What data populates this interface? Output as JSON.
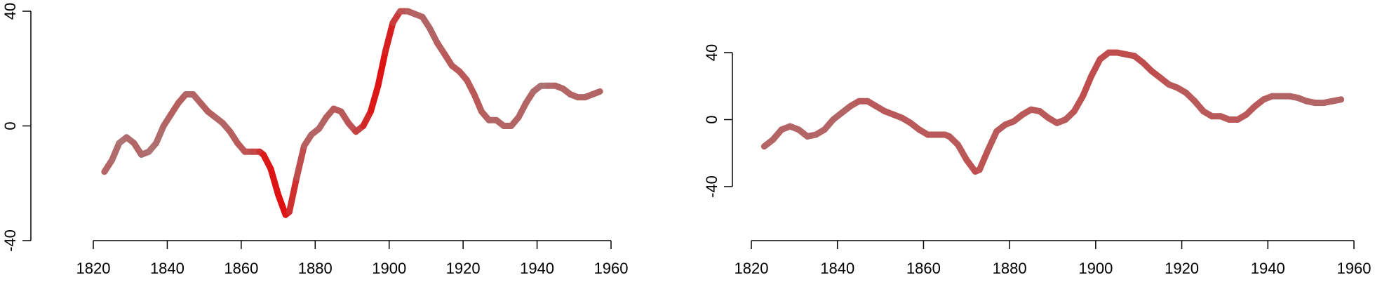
{
  "chart_data": [
    {
      "type": "line",
      "title": "",
      "xlabel": "",
      "ylabel": "",
      "xlim": [
        1820,
        1960
      ],
      "ylim": [
        -40,
        40
      ],
      "x_ticks": [
        "1820",
        "1840",
        "1860",
        "1880",
        "1900",
        "1920",
        "1940",
        "1960"
      ],
      "y_ticks": [
        "-40",
        "0",
        "40"
      ],
      "grid": false,
      "legend": "none",
      "colors": {
        "line_gray": "#a08a8a",
        "line_red": "#e01010"
      },
      "series": [
        {
          "x": [
            1823,
            1825,
            1827,
            1829,
            1831,
            1833,
            1835,
            1837,
            1839,
            1841,
            1843,
            1845,
            1847,
            1849,
            1851,
            1853,
            1855,
            1857,
            1859,
            1861,
            1863,
            1865,
            1866,
            1868,
            1870,
            1872,
            1873,
            1875,
            1877,
            1879,
            1881,
            1883,
            1885,
            1887,
            1889,
            1891,
            1893,
            1895,
            1897,
            1899,
            1901,
            1903,
            1905,
            1907,
            1909,
            1911,
            1913,
            1915,
            1917,
            1919,
            1921,
            1923,
            1925,
            1927,
            1929,
            1931,
            1933,
            1935,
            1937,
            1939,
            1941,
            1943,
            1945,
            1947,
            1949,
            1951,
            1953,
            1955,
            1957
          ],
          "y": [
            -16,
            -12,
            -6,
            -4,
            -6,
            -10,
            -9,
            -6,
            0,
            4,
            8,
            11,
            11,
            8,
            5,
            3,
            1,
            -2,
            -6,
            -9,
            -9,
            -9,
            -10,
            -15,
            -24,
            -31,
            -30,
            -18,
            -7,
            -3,
            -1,
            3,
            6,
            5,
            1,
            -2,
            0,
            5,
            14,
            26,
            36,
            40,
            40,
            39,
            38,
            34,
            29,
            25,
            21,
            19,
            16,
            11,
            5,
            2,
            2,
            0,
            0,
            3,
            8,
            12,
            14,
            14,
            14,
            13,
            11,
            10,
            10,
            11,
            12
          ],
          "emphasis": [
            0.3,
            0.3,
            0.2,
            0.2,
            0.3,
            0.3,
            0.2,
            0.2,
            0.3,
            0.3,
            0.4,
            0.3,
            0.3,
            0.3,
            0.4,
            0.3,
            0.3,
            0.3,
            0.4,
            0.4,
            0.5,
            0.6,
            0.9,
            0.95,
            1,
            1,
            0.9,
            0.6,
            0.4,
            0.3,
            0.3,
            0.3,
            0.4,
            0.4,
            0.4,
            0.5,
            0.7,
            0.9,
            1,
            0.95,
            0.8,
            0.5,
            0.4,
            0.3,
            0.3,
            0.3,
            0.3,
            0.4,
            0.4,
            0.4,
            0.4,
            0.4,
            0.4,
            0.3,
            0.3,
            0.3,
            0.3,
            0.3,
            0.3,
            0.3,
            0.2,
            0.2,
            0.3,
            0.3,
            0.3,
            0.3,
            0.3,
            0.3,
            0.3
          ]
        }
      ]
    },
    {
      "type": "line",
      "title": "",
      "xlabel": "",
      "ylabel": "",
      "xlim": [
        1820,
        1960
      ],
      "ylim": [
        -40,
        40
      ],
      "x_ticks": [
        "1820",
        "1840",
        "1860",
        "1880",
        "1900",
        "1920",
        "1940",
        "1960"
      ],
      "y_ticks": [
        "-40",
        "0",
        "40"
      ],
      "grid": false,
      "legend": "none",
      "colors": {
        "line_gray": "#a08a8a",
        "line_red": "#e01010"
      },
      "series": [
        {
          "x": [
            1823,
            1825,
            1827,
            1829,
            1831,
            1833,
            1835,
            1837,
            1839,
            1841,
            1843,
            1845,
            1847,
            1849,
            1851,
            1853,
            1855,
            1857,
            1859,
            1861,
            1863,
            1865,
            1866,
            1868,
            1870,
            1872,
            1873,
            1875,
            1877,
            1879,
            1881,
            1883,
            1885,
            1887,
            1889,
            1891,
            1893,
            1895,
            1897,
            1899,
            1901,
            1903,
            1905,
            1907,
            1909,
            1911,
            1913,
            1915,
            1917,
            1919,
            1921,
            1923,
            1925,
            1927,
            1929,
            1931,
            1933,
            1935,
            1937,
            1939,
            1941,
            1943,
            1945,
            1947,
            1949,
            1951,
            1953,
            1955,
            1957
          ],
          "y": [
            -16,
            -12,
            -6,
            -4,
            -6,
            -10,
            -9,
            -6,
            0,
            4,
            8,
            11,
            11,
            8,
            5,
            3,
            1,
            -2,
            -6,
            -9,
            -9,
            -9,
            -10,
            -15,
            -24,
            -31,
            -30,
            -18,
            -7,
            -3,
            -1,
            3,
            6,
            5,
            1,
            -2,
            0,
            5,
            14,
            26,
            36,
            40,
            40,
            39,
            38,
            34,
            29,
            25,
            21,
            19,
            16,
            11,
            5,
            2,
            2,
            0,
            0,
            3,
            8,
            12,
            14,
            14,
            14,
            13,
            11,
            10,
            10,
            11,
            12
          ],
          "emphasis": [
            0.3,
            0.3,
            0.3,
            0.3,
            0.3,
            0.3,
            0.3,
            0.3,
            0.3,
            0.3,
            0.3,
            0.4,
            0.4,
            0.4,
            0.4,
            0.4,
            0.4,
            0.4,
            0.4,
            0.4,
            0.4,
            0.4,
            0.4,
            0.4,
            0.4,
            0.5,
            0.5,
            0.4,
            0.4,
            0.4,
            0.4,
            0.4,
            0.4,
            0.4,
            0.4,
            0.4,
            0.4,
            0.4,
            0.5,
            0.5,
            0.5,
            0.5,
            0.5,
            0.5,
            0.5,
            0.5,
            0.5,
            0.5,
            0.4,
            0.4,
            0.4,
            0.4,
            0.4,
            0.4,
            0.4,
            0.4,
            0.4,
            0.4,
            0.4,
            0.4,
            0.3,
            0.3,
            0.3,
            0.3,
            0.3,
            0.3,
            0.3,
            0.3,
            0.3
          ]
        }
      ]
    }
  ]
}
